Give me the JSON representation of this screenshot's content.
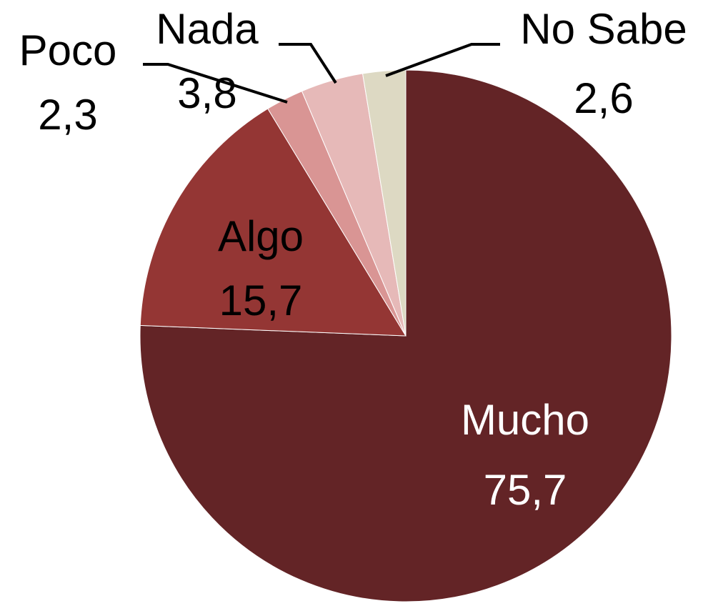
{
  "chart_data": {
    "type": "pie",
    "categories": [
      "Mucho",
      "Algo",
      "Poco",
      "Nada",
      "No Sabe"
    ],
    "values": [
      75.7,
      15.7,
      2.3,
      3.8,
      2.6
    ],
    "value_labels": [
      "75,7",
      "15,7",
      "2,3",
      "3,8",
      "2,6"
    ],
    "colors": [
      "#632426",
      "#943634",
      "#d99594",
      "#e6b9b8",
      "#ddd9c3"
    ]
  }
}
